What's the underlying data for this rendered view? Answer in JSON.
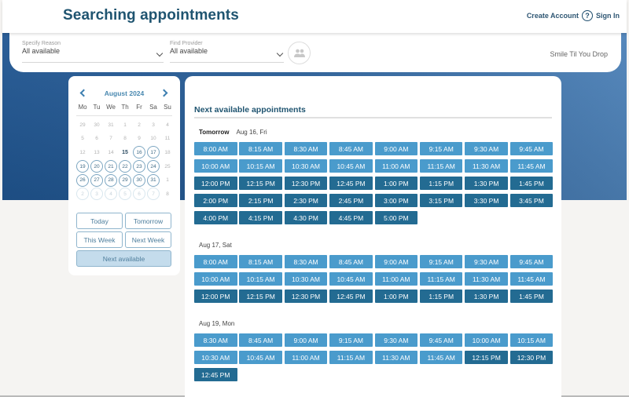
{
  "header": {
    "title": "Searching appointments",
    "create_account": "Create Account",
    "help_icon": "?",
    "sign_in": "Sign In"
  },
  "filters": {
    "reason": {
      "label": "Specify Reason",
      "value": "All available"
    },
    "provider": {
      "label": "Find Provider",
      "value": "All available"
    },
    "provider_icon": "people-icon",
    "clinic": "Smile Til You Drop"
  },
  "calendar": {
    "month": "August 2024",
    "weekdays": [
      "Mo",
      "Tu",
      "We",
      "Th",
      "Fr",
      "Sa",
      "Su"
    ],
    "weeks": [
      [
        {
          "d": "29",
          "s": "muted"
        },
        {
          "d": "30",
          "s": "muted"
        },
        {
          "d": "31",
          "s": "muted"
        },
        {
          "d": "1",
          "s": "muted"
        },
        {
          "d": "2",
          "s": "muted"
        },
        {
          "d": "3",
          "s": "muted"
        },
        {
          "d": "4",
          "s": "muted"
        }
      ],
      [
        {
          "d": "5",
          "s": "muted"
        },
        {
          "d": "6",
          "s": "muted"
        },
        {
          "d": "7",
          "s": "muted"
        },
        {
          "d": "8",
          "s": "muted"
        },
        {
          "d": "9",
          "s": "muted"
        },
        {
          "d": "10",
          "s": "muted"
        },
        {
          "d": "11",
          "s": "muted"
        }
      ],
      [
        {
          "d": "12",
          "s": "muted"
        },
        {
          "d": "13",
          "s": "muted"
        },
        {
          "d": "14",
          "s": "muted"
        },
        {
          "d": "15",
          "s": "today"
        },
        {
          "d": "16",
          "s": "avail"
        },
        {
          "d": "17",
          "s": "avail"
        },
        {
          "d": "18",
          "s": "muted"
        }
      ],
      [
        {
          "d": "19",
          "s": "avail"
        },
        {
          "d": "20",
          "s": "avail"
        },
        {
          "d": "21",
          "s": "avail"
        },
        {
          "d": "22",
          "s": "avail"
        },
        {
          "d": "23",
          "s": "avail"
        },
        {
          "d": "24",
          "s": "avail"
        },
        {
          "d": "25",
          "s": "muted"
        }
      ],
      [
        {
          "d": "26",
          "s": "avail"
        },
        {
          "d": "27",
          "s": "avail"
        },
        {
          "d": "28",
          "s": "avail"
        },
        {
          "d": "29",
          "s": "avail"
        },
        {
          "d": "30",
          "s": "avail"
        },
        {
          "d": "31",
          "s": "avail"
        },
        {
          "d": "1",
          "s": "muted"
        }
      ],
      [
        {
          "d": "2",
          "s": "next-month"
        },
        {
          "d": "3",
          "s": "next-month"
        },
        {
          "d": "4",
          "s": "next-month"
        },
        {
          "d": "5",
          "s": "next-month"
        },
        {
          "d": "6",
          "s": "next-month"
        },
        {
          "d": "7",
          "s": "next-month"
        },
        {
          "d": "8",
          "s": "muted"
        }
      ]
    ],
    "quick_buttons": [
      "Today",
      "Tomorrow",
      "This Week",
      "Next Week"
    ],
    "next_available": "Next available"
  },
  "main": {
    "title": "Next available appointments",
    "days": [
      {
        "relative": "Tomorrow",
        "date": "Aug 16, Fri",
        "slots": [
          "8:00 AM",
          "8:15 AM",
          "8:30 AM",
          "8:45 AM",
          "9:00 AM",
          "9:15 AM",
          "9:30 AM",
          "9:45 AM",
          "10:00 AM",
          "10:15 AM",
          "10:30 AM",
          "10:45 AM",
          "11:00 AM",
          "11:15 AM",
          "11:30 AM",
          "11:45 AM",
          "12:00 PM",
          "12:15 PM",
          "12:30 PM",
          "12:45 PM",
          "1:00 PM",
          "1:15 PM",
          "1:30 PM",
          "1:45 PM",
          "2:00 PM",
          "2:15 PM",
          "2:30 PM",
          "2:45 PM",
          "3:00 PM",
          "3:15 PM",
          "3:30 PM",
          "3:45 PM",
          "4:00 PM",
          "4:15 PM",
          "4:30 PM",
          "4:45 PM",
          "5:00 PM"
        ]
      },
      {
        "relative": "",
        "date": "Aug 17, Sat",
        "slots": [
          "8:00 AM",
          "8:15 AM",
          "8:30 AM",
          "8:45 AM",
          "9:00 AM",
          "9:15 AM",
          "9:30 AM",
          "9:45 AM",
          "10:00 AM",
          "10:15 AM",
          "10:30 AM",
          "10:45 AM",
          "11:00 AM",
          "11:15 AM",
          "11:30 AM",
          "11:45 AM",
          "12:00 PM",
          "12:15 PM",
          "12:30 PM",
          "12:45 PM",
          "1:00 PM",
          "1:15 PM",
          "1:30 PM",
          "1:45 PM"
        ]
      },
      {
        "relative": "",
        "date": "Aug 19, Mon",
        "slots": [
          "8:30 AM",
          "8:45 AM",
          "9:00 AM",
          "9:15 AM",
          "9:30 AM",
          "9:45 AM",
          "10:00 AM",
          "10:15 AM",
          "10:30 AM",
          "10:45 AM",
          "11:00 AM",
          "11:15 AM",
          "11:30 AM",
          "11:45 AM",
          "12:15 PM",
          "12:30 PM",
          "12:45 PM"
        ]
      }
    ]
  },
  "colors": {
    "title": "#1f5470",
    "slot_am": "#4a9bcc",
    "slot_pm": "#236b92",
    "bg_blue": "#2a5f98"
  }
}
